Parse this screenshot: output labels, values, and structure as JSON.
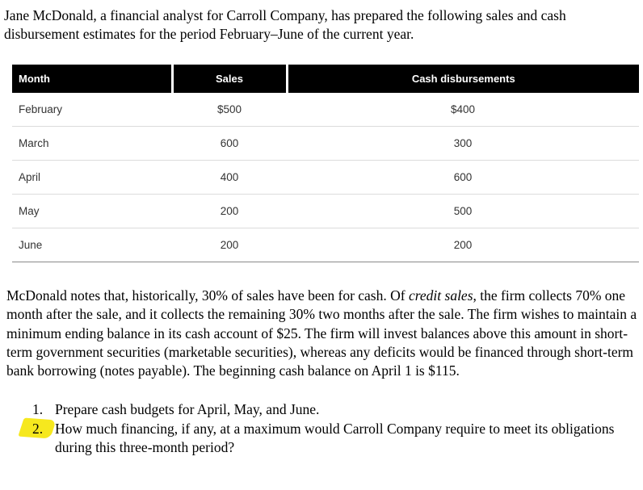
{
  "intro": "Jane McDonald, a financial analyst for Carroll Company, has prepared the following sales and cash disbursement estimates for the period February–June of the current year.",
  "table": {
    "headers": [
      "Month",
      "Sales",
      "Cash disbursements"
    ],
    "rows": [
      [
        "February",
        "$500",
        "$400"
      ],
      [
        "March",
        "600",
        "300"
      ],
      [
        "April",
        "400",
        "600"
      ],
      [
        "May",
        "200",
        "500"
      ],
      [
        "June",
        "200",
        "200"
      ]
    ]
  },
  "notes": {
    "part1": "McDonald notes that, historically, 30% of sales have been for cash. Of ",
    "italic": "credit sales",
    "part2": ", the firm collects 70% one month after the sale, and it collects the remaining 30% two months after the sale. The firm wishes to maintain a minimum ending balance in its cash account of $25. The firm will invest balances above this amount in short-term government securities (marketable securities), whereas any deficits would be financed through short-term bank borrowing (notes payable). The beginning cash balance on April 1 is $115."
  },
  "questions": [
    {
      "number": "1.",
      "text": "Prepare cash budgets for April, May, and June."
    },
    {
      "number": "2.",
      "text": "How much financing, if any, at a maximum would Carroll Company require to meet its obligations during this three-month period?"
    }
  ]
}
